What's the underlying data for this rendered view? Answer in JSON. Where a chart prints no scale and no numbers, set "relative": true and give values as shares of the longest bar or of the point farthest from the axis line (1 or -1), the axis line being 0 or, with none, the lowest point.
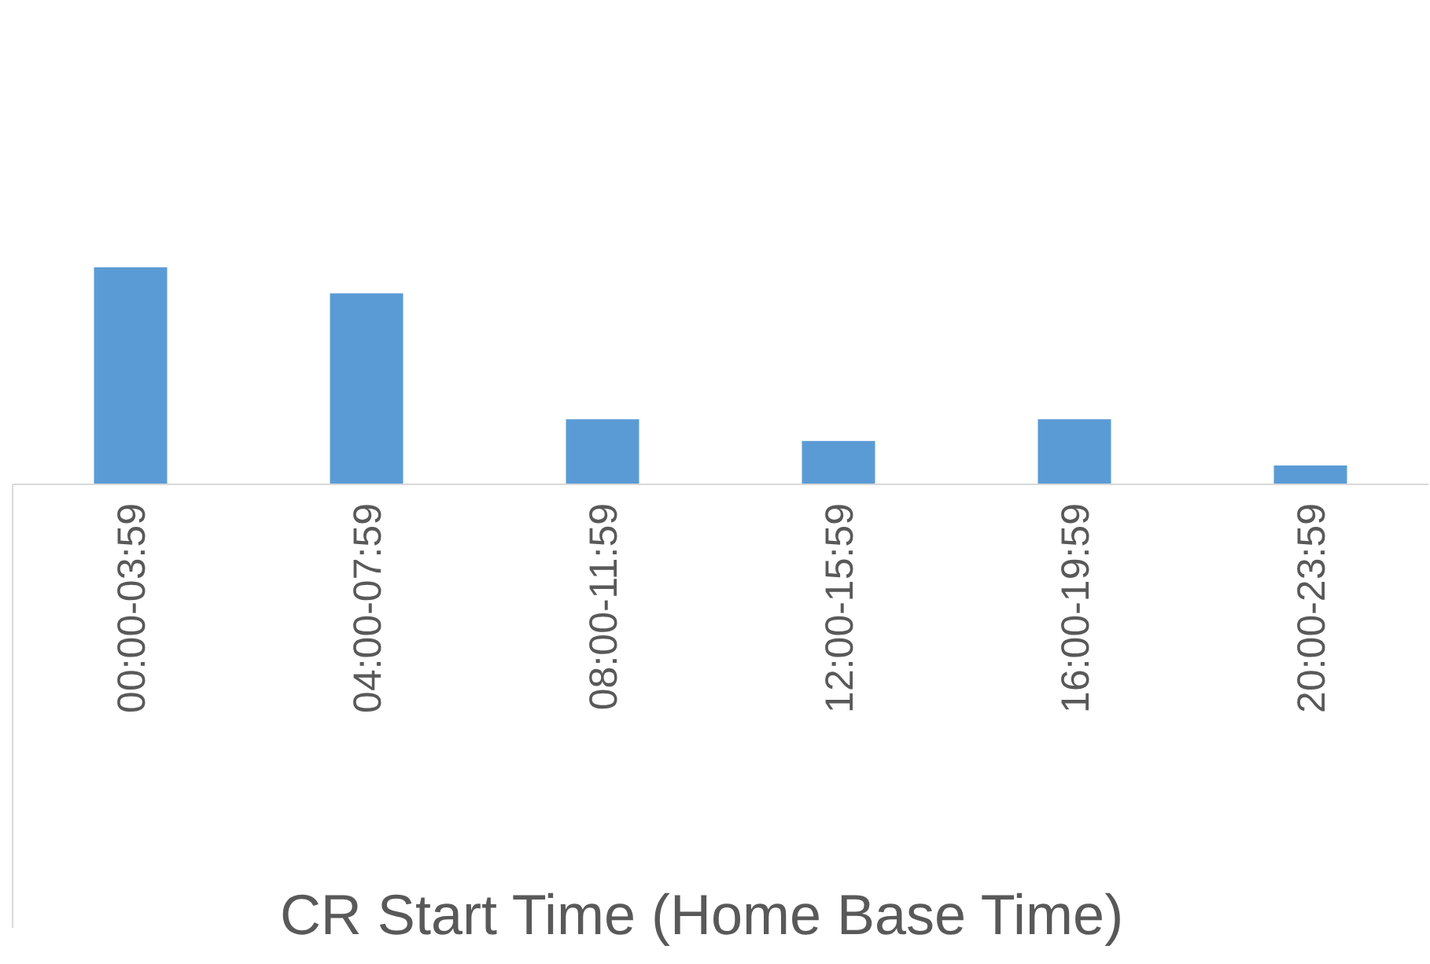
{
  "chart_data": {
    "type": "bar",
    "relative": true,
    "xlabel": "CR Start Time (Home Base Time)",
    "categories": [
      "00:00-03:59",
      "04:00-07:59",
      "08:00-11:59",
      "12:00-15:59",
      "16:00-19:59",
      "20:00-23:59"
    ],
    "values": [
      1,
      0.88,
      0.3,
      0.2,
      0.3,
      0.087
    ],
    "color": "#5b9bd5",
    "grid": false
  }
}
